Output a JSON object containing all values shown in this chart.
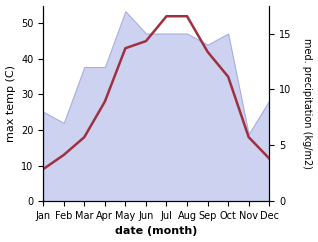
{
  "months": [
    "Jan",
    "Feb",
    "Mar",
    "Apr",
    "May",
    "Jun",
    "Jul",
    "Aug",
    "Sep",
    "Oct",
    "Nov",
    "Dec"
  ],
  "month_indices": [
    0,
    1,
    2,
    3,
    4,
    5,
    6,
    7,
    8,
    9,
    10,
    11
  ],
  "temperature": [
    9,
    13,
    18,
    28,
    43,
    45,
    52,
    52,
    42,
    35,
    18,
    12
  ],
  "precipitation": [
    8,
    7,
    12,
    12,
    17,
    15,
    15,
    15,
    14,
    15,
    6,
    9
  ],
  "temp_color": "#a03040",
  "precip_fill_color": "#c8cef0",
  "precip_edge_color": "#a0a8e0",
  "temp_ylim": [
    0,
    55
  ],
  "precip_ylim": [
    0,
    17.5
  ],
  "temp_yticks": [
    0,
    10,
    20,
    30,
    40,
    50
  ],
  "precip_yticks": [
    0,
    5,
    10,
    15
  ],
  "ylabel_left": "max temp (C)",
  "ylabel_right": "med. precipitation (kg/m2)",
  "xlabel": "date (month)",
  "figsize": [
    3.18,
    2.42
  ],
  "dpi": 100,
  "bg_color": "#ffffff"
}
